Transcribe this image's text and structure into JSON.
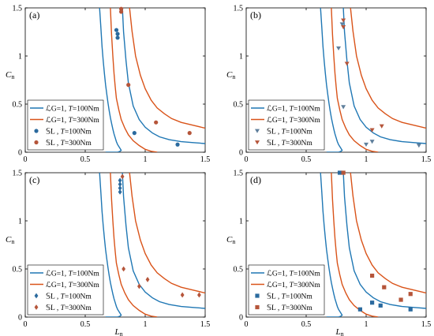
{
  "chart_data": [
    {
      "type": "line",
      "panel_label": "(a)",
      "ylabel": "Cn",
      "xlabel": "",
      "xlim": [
        0,
        1.5
      ],
      "ylim": [
        0,
        1.5
      ],
      "xticks": [
        "0",
        "0.5",
        "1",
        "1.5"
      ],
      "yticks": [
        "0",
        "0.5",
        "1",
        "1.5"
      ],
      "legend_position": "bottom-left",
      "colors": {
        "blue": "#1f77b4",
        "orange": "#d95319",
        "blue_marker": "#2b6a9e",
        "orange_marker": "#b5553a"
      },
      "legend": [
        {
          "prefix": "ℒG=1, ",
          "label": "T=100Nm",
          "kind": "line",
          "color": "blue"
        },
        {
          "prefix": "ℒG=1, ",
          "label": "T=300Nm",
          "kind": "line",
          "color": "orange"
        },
        {
          "prefix": "𝕊L , ",
          "label": "T=100Nm",
          "kind": "marker",
          "color": "blue_marker"
        },
        {
          "prefix": "𝕊L , ",
          "label": "T=300Nm",
          "kind": "marker",
          "color": "orange_marker"
        }
      ],
      "marker": "circle",
      "series": [
        {
          "name": "T=100Nm",
          "kind": "line",
          "color": "blue",
          "x": [
            0.62,
            0.63,
            0.64,
            0.65,
            0.66,
            0.67,
            0.68,
            0.69,
            0.7,
            0.71,
            0.72,
            0.73,
            0.74,
            0.75,
            0.76,
            0.77,
            0.78,
            0.79,
            0.8,
            0.79,
            0.78,
            0.77,
            0.76,
            0.75,
            0.73,
            0.71,
            0.69,
            0.67
          ],
          "y": [
            1.5,
            1.3,
            1.1,
            0.95,
            0.82,
            0.7,
            0.6,
            0.51,
            0.43,
            0.36,
            0.3,
            0.24,
            0.19,
            0.15,
            0.11,
            0.08,
            0.06,
            0.04,
            0.02,
            0.01,
            0.005,
            0.0,
            0.0,
            0.0,
            0.0,
            0.0,
            0.0,
            0.0
          ]
        },
        {
          "name": "T=100Nm",
          "kind": "line",
          "color": "blue",
          "x": [
            0.81,
            0.82,
            0.84,
            0.86,
            0.9,
            0.95,
            1.0,
            1.06,
            1.12,
            1.2,
            1.3,
            1.4,
            1.5
          ],
          "y": [
            1.5,
            1.25,
            0.95,
            0.72,
            0.48,
            0.34,
            0.26,
            0.2,
            0.16,
            0.13,
            0.11,
            0.1,
            0.09
          ]
        },
        {
          "name": "T=300Nm",
          "kind": "line",
          "color": "orange",
          "x": [
            0.71,
            0.72,
            0.73,
            0.74,
            0.75,
            0.76,
            0.78,
            0.8,
            0.83,
            0.86,
            0.9,
            0.95,
            1.0,
            1.05,
            1.1
          ],
          "y": [
            1.5,
            1.22,
            1.0,
            0.82,
            0.68,
            0.56,
            0.44,
            0.34,
            0.25,
            0.18,
            0.12,
            0.07,
            0.03,
            0.01,
            0.0
          ]
        },
        {
          "name": "T=300Nm",
          "kind": "line",
          "color": "orange",
          "x": [
            0.87,
            0.89,
            0.92,
            0.96,
            1.0,
            1.05,
            1.1,
            1.16,
            1.22,
            1.3,
            1.4,
            1.5
          ],
          "y": [
            1.5,
            1.26,
            1.0,
            0.8,
            0.66,
            0.54,
            0.46,
            0.4,
            0.35,
            0.31,
            0.28,
            0.25
          ]
        },
        {
          "name": "T=100Nm",
          "kind": "scatter",
          "color": "blue_marker",
          "x": [
            0.76,
            0.77,
            0.77,
            0.91,
            1.27
          ],
          "y": [
            1.27,
            1.23,
            1.19,
            0.2,
            0.08
          ]
        },
        {
          "name": "T=300Nm",
          "kind": "scatter",
          "color": "orange_marker",
          "x": [
            0.8,
            0.8,
            0.86,
            1.09,
            1.37
          ],
          "y": [
            1.49,
            1.46,
            0.7,
            0.31,
            0.2
          ]
        }
      ]
    },
    {
      "type": "line",
      "panel_label": "(b)",
      "ylabel": "Cn",
      "xlabel": "",
      "xlim": [
        0,
        1.5
      ],
      "ylim": [
        0,
        1.5
      ],
      "xticks": [
        "0",
        "0.5",
        "1",
        "1.5"
      ],
      "yticks": [
        "0",
        "0.5",
        "1",
        "1.5"
      ],
      "legend_position": "bottom-left",
      "colors": {
        "blue": "#1f77b4",
        "orange": "#d95319",
        "blue_marker": "#5f7f9c",
        "orange_marker": "#b5553a"
      },
      "legend": [
        {
          "prefix": "ℒG=1, ",
          "label": "T=100Nm",
          "kind": "line",
          "color": "blue"
        },
        {
          "prefix": "ℒG=1, ",
          "label": "T=300Nm",
          "kind": "line",
          "color": "orange"
        },
        {
          "prefix": "𝕊L , ",
          "label": "T=100Nm",
          "kind": "marker",
          "color": "blue_marker"
        },
        {
          "prefix": "𝕊L , ",
          "label": "T=300Nm",
          "kind": "marker",
          "color": "orange_marker"
        }
      ],
      "marker": "triangle",
      "series": [
        {
          "name": "T=100Nm",
          "kind": "line",
          "color": "blue",
          "x": [
            0.62,
            0.63,
            0.64,
            0.65,
            0.66,
            0.67,
            0.68,
            0.69,
            0.7,
            0.71,
            0.72,
            0.73,
            0.74,
            0.75,
            0.76,
            0.77,
            0.78,
            0.79,
            0.8,
            0.79,
            0.78,
            0.77,
            0.76,
            0.75,
            0.73,
            0.71,
            0.69,
            0.67
          ],
          "y": [
            1.5,
            1.3,
            1.1,
            0.95,
            0.82,
            0.7,
            0.6,
            0.51,
            0.43,
            0.36,
            0.3,
            0.24,
            0.19,
            0.15,
            0.11,
            0.08,
            0.06,
            0.04,
            0.02,
            0.01,
            0.005,
            0.0,
            0.0,
            0.0,
            0.0,
            0.0,
            0.0,
            0.0
          ]
        },
        {
          "name": "T=100Nm",
          "kind": "line",
          "color": "blue",
          "x": [
            0.81,
            0.82,
            0.84,
            0.86,
            0.9,
            0.95,
            1.0,
            1.06,
            1.12,
            1.2,
            1.3,
            1.4,
            1.5
          ],
          "y": [
            1.5,
            1.25,
            0.95,
            0.72,
            0.48,
            0.34,
            0.26,
            0.2,
            0.16,
            0.13,
            0.11,
            0.1,
            0.09
          ]
        },
        {
          "name": "T=300Nm",
          "kind": "line",
          "color": "orange",
          "x": [
            0.71,
            0.72,
            0.73,
            0.74,
            0.75,
            0.76,
            0.78,
            0.8,
            0.83,
            0.86,
            0.9,
            0.95,
            1.0,
            1.05,
            1.1
          ],
          "y": [
            1.5,
            1.22,
            1.0,
            0.82,
            0.68,
            0.56,
            0.44,
            0.34,
            0.25,
            0.18,
            0.12,
            0.07,
            0.03,
            0.01,
            0.0
          ]
        },
        {
          "name": "T=300Nm",
          "kind": "line",
          "color": "orange",
          "x": [
            0.87,
            0.89,
            0.92,
            0.96,
            1.0,
            1.05,
            1.1,
            1.16,
            1.22,
            1.3,
            1.4,
            1.5
          ],
          "y": [
            1.5,
            1.26,
            1.0,
            0.8,
            0.66,
            0.54,
            0.46,
            0.4,
            0.35,
            0.31,
            0.28,
            0.25
          ]
        },
        {
          "name": "T=100Nm",
          "kind": "scatter",
          "color": "blue_marker",
          "x": [
            0.77,
            0.8,
            0.81,
            1.0,
            1.05,
            1.44
          ],
          "y": [
            1.08,
            1.33,
            0.47,
            0.08,
            0.11,
            0.07
          ]
        },
        {
          "name": "T=300Nm",
          "kind": "scatter",
          "color": "orange_marker",
          "x": [
            0.81,
            0.81,
            0.84,
            1.05,
            1.13
          ],
          "y": [
            1.37,
            1.3,
            0.92,
            0.23,
            0.27
          ]
        }
      ]
    },
    {
      "type": "line",
      "panel_label": "(c)",
      "ylabel": "Cn",
      "xlabel": "Ln",
      "xlim": [
        0,
        1.5
      ],
      "ylim": [
        0,
        1.5
      ],
      "xticks": [
        "0",
        "0.5",
        "1",
        "1.5"
      ],
      "yticks": [
        "0",
        "0.5",
        "1",
        "1.5"
      ],
      "legend_position": "bottom-left",
      "colors": {
        "blue": "#1f77b4",
        "orange": "#d95319",
        "blue_marker": "#2b6a9e",
        "orange_marker": "#b5553a"
      },
      "legend": [
        {
          "prefix": "ℒG=1, ",
          "label": "T=100Nm",
          "kind": "line",
          "color": "blue"
        },
        {
          "prefix": "ℒG=1, ",
          "label": "T=300Nm",
          "kind": "line",
          "color": "orange"
        },
        {
          "prefix": "𝕊L , ",
          "label": "T=100Nm",
          "kind": "marker",
          "color": "blue_marker"
        },
        {
          "prefix": "𝕊L , ",
          "label": "T=300Nm",
          "kind": "marker",
          "color": "orange_marker"
        }
      ],
      "marker": "diamond",
      "series": [
        {
          "name": "T=100Nm",
          "kind": "line",
          "color": "blue",
          "x": [
            0.62,
            0.63,
            0.64,
            0.65,
            0.66,
            0.67,
            0.68,
            0.69,
            0.7,
            0.71,
            0.72,
            0.73,
            0.74,
            0.75,
            0.76,
            0.77,
            0.78,
            0.79,
            0.8,
            0.79,
            0.78,
            0.77,
            0.76,
            0.75,
            0.73,
            0.71,
            0.69,
            0.67
          ],
          "y": [
            1.5,
            1.3,
            1.1,
            0.95,
            0.82,
            0.7,
            0.6,
            0.51,
            0.43,
            0.36,
            0.3,
            0.24,
            0.19,
            0.15,
            0.11,
            0.08,
            0.06,
            0.04,
            0.02,
            0.01,
            0.005,
            0.0,
            0.0,
            0.0,
            0.0,
            0.0,
            0.0,
            0.0
          ]
        },
        {
          "name": "T=100Nm",
          "kind": "line",
          "color": "blue",
          "x": [
            0.81,
            0.82,
            0.84,
            0.86,
            0.9,
            0.95,
            1.0,
            1.06,
            1.12,
            1.2,
            1.3,
            1.4,
            1.5
          ],
          "y": [
            1.5,
            1.25,
            0.95,
            0.72,
            0.48,
            0.34,
            0.26,
            0.2,
            0.16,
            0.13,
            0.11,
            0.1,
            0.09
          ]
        },
        {
          "name": "T=300Nm",
          "kind": "line",
          "color": "orange",
          "x": [
            0.71,
            0.72,
            0.73,
            0.74,
            0.75,
            0.76,
            0.78,
            0.8,
            0.83,
            0.86,
            0.9,
            0.95,
            1.0,
            1.05,
            1.1
          ],
          "y": [
            1.5,
            1.22,
            1.0,
            0.82,
            0.68,
            0.56,
            0.44,
            0.34,
            0.25,
            0.18,
            0.12,
            0.07,
            0.03,
            0.01,
            0.0
          ]
        },
        {
          "name": "T=300Nm",
          "kind": "line",
          "color": "orange",
          "x": [
            0.87,
            0.89,
            0.92,
            0.96,
            1.0,
            1.05,
            1.1,
            1.16,
            1.22,
            1.3,
            1.4,
            1.5
          ],
          "y": [
            1.5,
            1.26,
            1.0,
            0.8,
            0.66,
            0.54,
            0.46,
            0.4,
            0.35,
            0.31,
            0.28,
            0.25
          ]
        },
        {
          "name": "T=100Nm",
          "kind": "scatter",
          "color": "blue_marker",
          "x": [
            0.79,
            0.79,
            0.79,
            0.79
          ],
          "y": [
            1.42,
            1.38,
            1.34,
            1.3
          ]
        },
        {
          "name": "T=300Nm",
          "kind": "scatter",
          "color": "orange_marker",
          "x": [
            0.81,
            0.82,
            0.95,
            1.02,
            1.31,
            1.45
          ],
          "y": [
            1.46,
            0.5,
            0.32,
            0.39,
            0.23,
            0.23
          ]
        }
      ]
    },
    {
      "type": "line",
      "panel_label": "(d)",
      "ylabel": "Cn",
      "xlabel": "Ln",
      "xlim": [
        0,
        1.5
      ],
      "ylim": [
        0,
        1.5
      ],
      "xticks": [
        "0",
        "0.5",
        "1",
        "1.5"
      ],
      "yticks": [
        "0",
        "0.5",
        "1",
        "1.5"
      ],
      "legend_position": "bottom-left",
      "colors": {
        "blue": "#1f77b4",
        "orange": "#d95319",
        "blue_marker": "#2b6a9e",
        "orange_marker": "#b5553a"
      },
      "legend": [
        {
          "prefix": "ℒG=1, ",
          "label": "T=100Nm",
          "kind": "line",
          "color": "blue"
        },
        {
          "prefix": "ℒG=1, ",
          "label": "T=300Nm",
          "kind": "line",
          "color": "orange"
        },
        {
          "prefix": "𝕊L , ",
          "label": "T=100Nm",
          "kind": "marker",
          "color": "blue_marker"
        },
        {
          "prefix": "𝕊L , ",
          "label": "T=300Nm",
          "kind": "marker",
          "color": "orange_marker"
        }
      ],
      "marker": "square",
      "series": [
        {
          "name": "T=100Nm",
          "kind": "line",
          "color": "blue",
          "x": [
            0.62,
            0.63,
            0.64,
            0.65,
            0.66,
            0.67,
            0.68,
            0.69,
            0.7,
            0.71,
            0.72,
            0.73,
            0.74,
            0.75,
            0.76,
            0.77,
            0.78,
            0.79,
            0.8,
            0.79,
            0.78,
            0.77,
            0.76,
            0.75,
            0.73,
            0.71,
            0.69,
            0.67
          ],
          "y": [
            1.5,
            1.3,
            1.1,
            0.95,
            0.82,
            0.7,
            0.6,
            0.51,
            0.43,
            0.36,
            0.3,
            0.24,
            0.19,
            0.15,
            0.11,
            0.08,
            0.06,
            0.04,
            0.02,
            0.01,
            0.005,
            0.0,
            0.0,
            0.0,
            0.0,
            0.0,
            0.0,
            0.0
          ]
        },
        {
          "name": "T=100Nm",
          "kind": "line",
          "color": "blue",
          "x": [
            0.81,
            0.82,
            0.84,
            0.86,
            0.9,
            0.95,
            1.0,
            1.06,
            1.12,
            1.2,
            1.3,
            1.4,
            1.5
          ],
          "y": [
            1.5,
            1.25,
            0.95,
            0.72,
            0.48,
            0.34,
            0.26,
            0.2,
            0.16,
            0.13,
            0.11,
            0.1,
            0.09
          ]
        },
        {
          "name": "T=300Nm",
          "kind": "line",
          "color": "orange",
          "x": [
            0.71,
            0.72,
            0.73,
            0.74,
            0.75,
            0.76,
            0.78,
            0.8,
            0.83,
            0.86,
            0.9,
            0.95,
            1.0,
            1.05,
            1.1
          ],
          "y": [
            1.5,
            1.22,
            1.0,
            0.82,
            0.68,
            0.56,
            0.44,
            0.34,
            0.25,
            0.18,
            0.12,
            0.07,
            0.03,
            0.01,
            0.0
          ]
        },
        {
          "name": "T=300Nm",
          "kind": "line",
          "color": "orange",
          "x": [
            0.87,
            0.89,
            0.92,
            0.96,
            1.0,
            1.05,
            1.1,
            1.16,
            1.22,
            1.3,
            1.4,
            1.5
          ],
          "y": [
            1.5,
            1.26,
            1.0,
            0.8,
            0.66,
            0.54,
            0.46,
            0.4,
            0.35,
            0.31,
            0.28,
            0.25
          ]
        },
        {
          "name": "T=100Nm",
          "kind": "scatter",
          "color": "blue_marker",
          "x": [
            0.78,
            0.95,
            1.05,
            1.12,
            1.37
          ],
          "y": [
            1.5,
            0.08,
            0.15,
            0.12,
            0.08
          ]
        },
        {
          "name": "T=300Nm",
          "kind": "scatter",
          "color": "orange_marker",
          "x": [
            0.81,
            1.05,
            1.15,
            1.29,
            1.37
          ],
          "y": [
            1.5,
            0.43,
            0.31,
            0.18,
            0.24
          ]
        }
      ]
    }
  ]
}
